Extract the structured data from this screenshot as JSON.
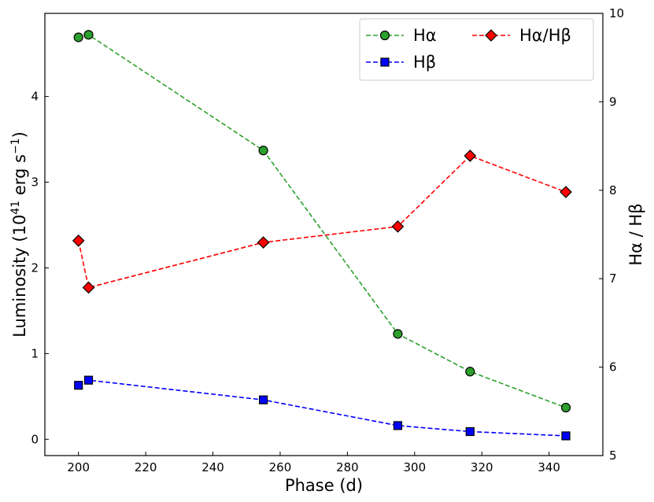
{
  "chart_data": {
    "type": "line",
    "xlabel": "Phase (d)",
    "ylabel_left": "Luminosity (10^41 erg s^-1)",
    "ylabel_left_parts": {
      "main": "Luminosity (10",
      "exp1": "41",
      "mid": " erg s",
      "exp2": "−1",
      "end": ")"
    },
    "ylabel_right": "Hα / Hβ",
    "xlim": [
      190,
      356
    ],
    "ylim_left": [
      -0.19,
      4.97
    ],
    "ylim_right": [
      5,
      10
    ],
    "xticks": [
      200,
      220,
      240,
      260,
      280,
      300,
      320,
      340
    ],
    "yticks_left": [
      0,
      1,
      2,
      3,
      4
    ],
    "yticks_right": [
      5,
      6,
      7,
      8,
      9,
      10
    ],
    "legend_position": "top-right",
    "grid": false,
    "series": [
      {
        "name": "Hα",
        "axis": "left",
        "color": "#2ca02c",
        "marker": "circle",
        "line": "dashed",
        "x": [
          200,
          203,
          255,
          295,
          316.5,
          345
        ],
        "y": [
          4.69,
          4.72,
          3.37,
          1.23,
          0.79,
          0.37
        ]
      },
      {
        "name": "Hβ",
        "axis": "left",
        "color": "#0000ff",
        "marker": "square",
        "line": "dashed",
        "x": [
          200,
          203,
          255,
          295,
          316.5,
          345
        ],
        "y": [
          0.63,
          0.69,
          0.46,
          0.16,
          0.09,
          0.04
        ]
      },
      {
        "name": "Hα/Hβ",
        "axis": "right",
        "color": "#ff0000",
        "marker": "diamond",
        "line": "dashed",
        "x": [
          200,
          203,
          255,
          295,
          316.5,
          345
        ],
        "y": [
          7.43,
          6.9,
          7.41,
          7.59,
          8.39,
          7.98
        ]
      }
    ]
  }
}
